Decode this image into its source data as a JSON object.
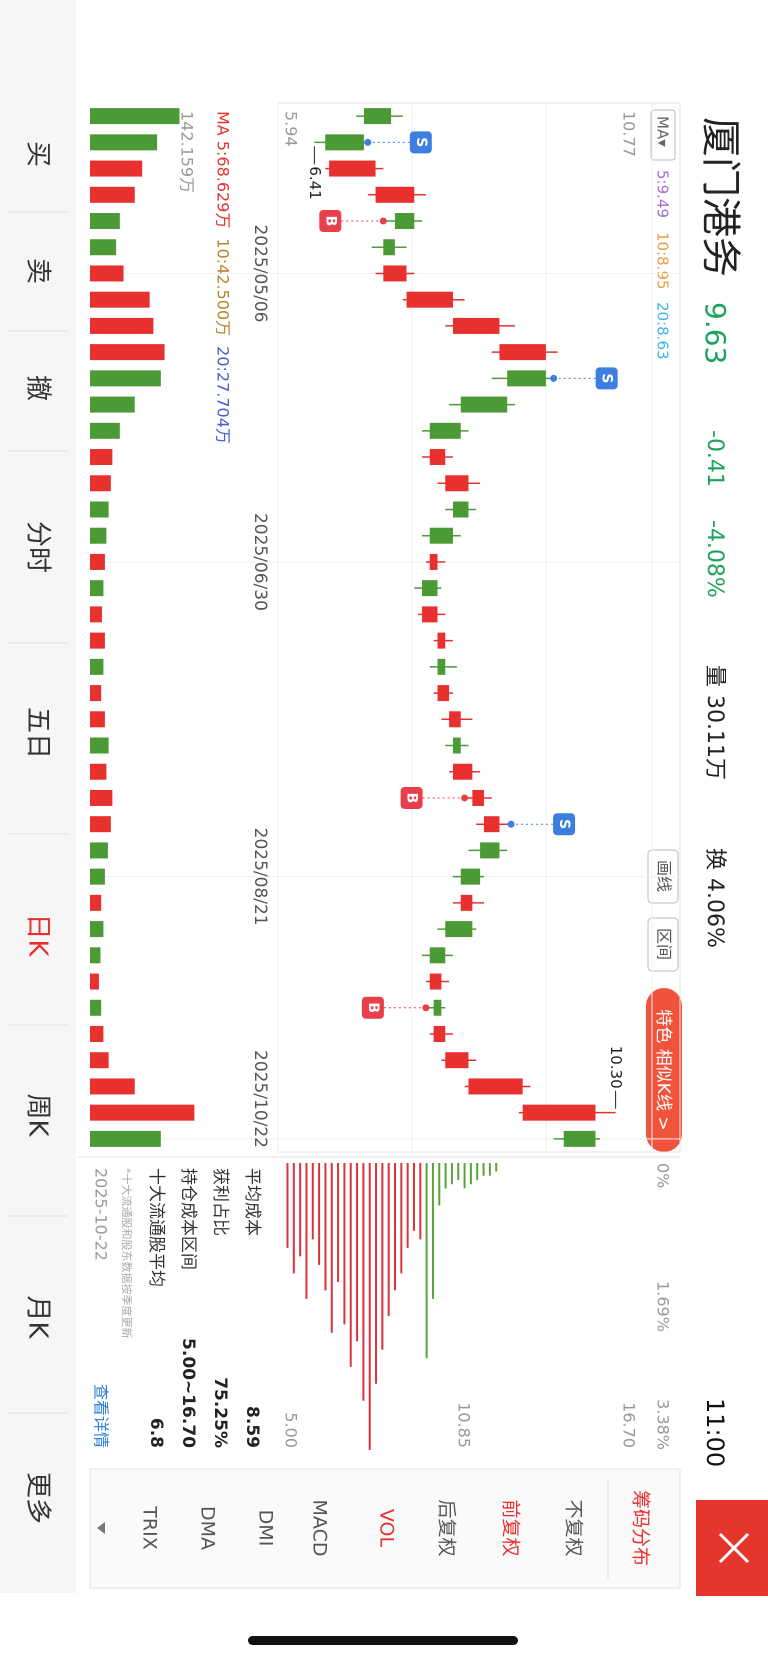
{
  "status": {
    "time": "11:00"
  },
  "header": {
    "title": "厦门港务",
    "price": 9.63,
    "change": -0.41,
    "change_pct": "-4.08%",
    "volume_label": "量",
    "volume": "30.11万",
    "turnover_label": "换",
    "turnover": "4.06%"
  },
  "toolbar": {
    "ma": "MA▾",
    "ma5": "5:9.49",
    "ma10": "10:8.95",
    "ma20": "20:8.63",
    "draw": "画线",
    "range": "区间",
    "feature": "特色 相似K线 >"
  },
  "chart_data": [
    {
      "type": "candlestick",
      "categories": [
        null,
        null,
        null,
        null,
        null,
        null,
        "2025/05/06",
        null,
        null,
        null,
        null,
        null,
        null,
        null,
        null,
        null,
        null,
        "2025/06/30",
        null,
        null,
        null,
        null,
        null,
        null,
        null,
        null,
        null,
        null,
        null,
        "2025/08/21",
        null,
        null,
        null,
        null,
        null,
        null,
        null,
        null,
        null,
        "2025/10/22"
      ],
      "open": [
        7.4,
        7.05,
        6.6,
        7.2,
        7.7,
        7.45,
        7.3,
        7.6,
        8.2,
        8.8,
        9.4,
        8.9,
        8.3,
        7.9,
        8.1,
        8.4,
        8.2,
        7.9,
        8.0,
        7.8,
        8.0,
        8.1,
        8.0,
        8.15,
        8.3,
        8.2,
        8.45,
        8.6,
        8.8,
        8.55,
        8.3,
        8.45,
        8.1,
        7.9,
        8.05,
        7.95,
        8.1,
        8.4,
        9.1,
        10.04
      ],
      "close": [
        7.05,
        6.55,
        7.2,
        7.7,
        7.45,
        7.3,
        7.6,
        8.2,
        8.8,
        9.4,
        8.9,
        8.3,
        7.9,
        8.1,
        8.4,
        8.2,
        7.9,
        8.0,
        7.8,
        8.0,
        8.1,
        8.0,
        8.15,
        8.3,
        8.2,
        8.45,
        8.6,
        8.8,
        8.55,
        8.3,
        8.45,
        8.1,
        7.9,
        8.05,
        7.95,
        8.1,
        8.4,
        9.1,
        10.04,
        9.63
      ],
      "low": [
        6.95,
        6.41,
        6.55,
        7.1,
        7.3,
        7.15,
        7.2,
        7.55,
        8.1,
        8.7,
        8.7,
        8.15,
        7.8,
        7.8,
        8.0,
        8.1,
        7.8,
        7.85,
        7.7,
        7.75,
        7.95,
        7.9,
        7.95,
        8.05,
        8.1,
        8.15,
        8.35,
        8.5,
        8.4,
        8.2,
        8.2,
        8.0,
        7.8,
        7.85,
        7.85,
        7.9,
        8.05,
        8.35,
        9.05,
        9.5
      ],
      "high": [
        7.55,
        7.1,
        7.3,
        7.85,
        7.8,
        7.6,
        7.7,
        8.35,
        9.0,
        9.55,
        9.5,
        9.0,
        8.4,
        8.2,
        8.55,
        8.5,
        8.3,
        8.1,
        8.05,
        8.1,
        8.2,
        8.25,
        8.2,
        8.45,
        8.4,
        8.55,
        8.7,
        8.95,
        8.9,
        8.6,
        8.6,
        8.5,
        8.2,
        8.15,
        8.1,
        8.2,
        8.5,
        9.2,
        10.3,
        10.1
      ],
      "up_color": "#e8312f",
      "down_color": "#4b9a36",
      "ylim": [
        5.94,
        10.77
      ],
      "yticks": [
        10.77,
        5.94
      ],
      "low_mark": {
        "value": 6.41,
        "label": "6.41"
      },
      "high_mark": {
        "value": 10.3,
        "label": "10.30"
      },
      "signals": [
        {
          "index": 1,
          "label": "S"
        },
        {
          "index": 4,
          "label": "B"
        },
        {
          "index": 10,
          "label": "S"
        },
        {
          "index": 26,
          "label": "B"
        },
        {
          "index": 27,
          "label": "S"
        },
        {
          "index": 34,
          "label": "B"
        }
      ]
    },
    {
      "type": "bar",
      "values": [
        120,
        90,
        70,
        60,
        40,
        35,
        45,
        80,
        85,
        100,
        95,
        60,
        40,
        30,
        28,
        25,
        22,
        20,
        18,
        16,
        20,
        18,
        15,
        20,
        25,
        22,
        30,
        28,
        24,
        20,
        15,
        18,
        14,
        12,
        15,
        18,
        25,
        60,
        140,
        95
      ],
      "ylim": [
        0,
        142.159
      ],
      "yticks": [
        {
          "value": 142.159,
          "label": "142.159万"
        }
      ],
      "legend": [
        "MA 5:68.629万",
        "10:42.500万",
        "20:27.704万"
      ],
      "legend_colors": [
        "#e8312f",
        "#b8862b",
        "#4a5fd0"
      ]
    },
    {
      "type": "hbar",
      "y": [
        5.3,
        5.5,
        5.7,
        5.9,
        6.1,
        6.3,
        6.5,
        6.7,
        6.9,
        7.1,
        7.3,
        7.5,
        7.7,
        7.9,
        8.1,
        8.3,
        8.5,
        8.7,
        8.9,
        9.1,
        9.3,
        9.5,
        9.7,
        9.9,
        10.1,
        10.3,
        10.5,
        10.7,
        10.9,
        11.1,
        11.3,
        11.5,
        11.7,
        11.9
      ],
      "values": [
        1.0,
        1.3,
        1.1,
        1.6,
        0.9,
        1.2,
        1.5,
        2.0,
        1.4,
        1.9,
        2.4,
        2.1,
        2.8,
        3.38,
        2.6,
        2.2,
        1.8,
        1.5,
        1.3,
        1.0,
        0.8,
        0.9,
        2.3,
        1.6,
        0.5,
        0.3,
        0.25,
        0.2,
        0.3,
        0.25,
        0.2,
        0.15,
        0.15,
        0.1
      ],
      "up_color": "#d9343a",
      "down_color": "#5aa33a",
      "ylim": [
        5,
        16.7
      ],
      "yticks": [
        {
          "value": 5,
          "label": "5.00"
        },
        {
          "value": 10.85,
          "label": "10.85"
        },
        {
          "value": 16.7,
          "label": "16.70"
        }
      ],
      "xlim": [
        0,
        3.38
      ],
      "xticks": [
        {
          "value": 0,
          "label": "0%"
        },
        {
          "value": 1.69,
          "label": "1.69%"
        },
        {
          "value": 3.38,
          "label": "3.38%"
        }
      ]
    }
  ],
  "chip_info": {
    "rows": [
      {
        "label": "平均成本",
        "value": 8.59
      },
      {
        "label": "获利占比",
        "value": "75.25%"
      },
      {
        "label": "持仓成本区间",
        "value": "5.00~16.70"
      },
      {
        "label": "十大流通股平均",
        "value": 6.8
      }
    ],
    "note": "*十大流通股和股东数据按季度更新",
    "date": "2025-10-22",
    "detail": "查看详情"
  },
  "menu": [
    "筹码分布",
    "不复权",
    "前复权",
    "后复权",
    "VOL",
    "MACD",
    "DMI",
    "DMA",
    "TRIX"
  ],
  "menu_active": [
    0,
    2,
    4
  ],
  "tabs": [
    "买",
    "卖",
    "撤",
    "分时",
    "五日",
    "日K",
    "周K",
    "月K",
    "更多"
  ],
  "active_tab": 5
}
